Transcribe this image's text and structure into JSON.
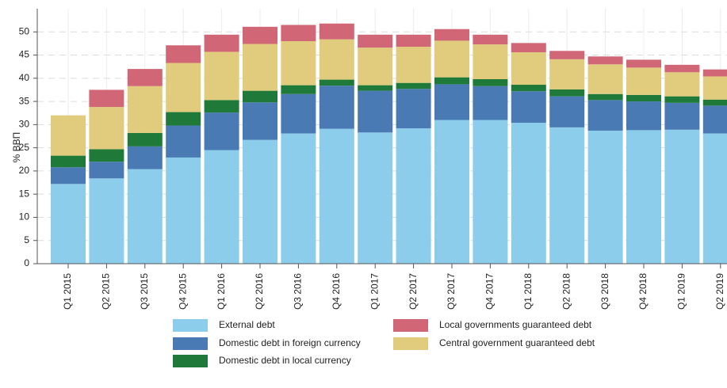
{
  "chart_data": {
    "type": "stacked_bar",
    "y_label": "% ВВП",
    "categories": [
      "Q1 2015",
      "Q2 2015",
      "Q3 2015",
      "Q4 2015",
      "Q1 2016",
      "Q2 2016",
      "Q3 2016",
      "Q4 2016",
      "Q1 2017",
      "Q2 2017",
      "Q3 2017",
      "Q4 2017",
      "Q1 2018",
      "Q2 2018",
      "Q3 2018",
      "Q4 2018",
      "Q1 2019",
      "Q2 2019"
    ],
    "series": [
      {
        "name": "External debt",
        "color": "#8ccdec",
        "values": [
          17.2,
          18.4,
          20.4,
          22.9,
          24.5,
          26.7,
          28.1,
          29.1,
          28.3,
          29.2,
          31.0,
          31.0,
          30.4,
          29.4,
          28.7,
          28.8,
          28.9,
          28.1
        ]
      },
      {
        "name": "Domestic debt in foreign currency",
        "color": "#4a7ab3",
        "values": [
          3.6,
          3.6,
          4.9,
          6.9,
          8.1,
          8.1,
          8.5,
          9.3,
          9.0,
          8.5,
          7.7,
          7.3,
          6.8,
          6.7,
          6.6,
          6.2,
          5.8,
          6.0
        ]
      },
      {
        "name": "Domestic debt in local currency",
        "color": "#1f7a3a",
        "values": [
          2.5,
          2.7,
          2.9,
          2.9,
          2.7,
          2.5,
          1.9,
          1.3,
          1.2,
          1.3,
          1.5,
          1.5,
          1.4,
          1.5,
          1.3,
          1.4,
          1.4,
          1.3
        ]
      },
      {
        "name": "Central government guaranteed debt",
        "color": "#e0cc7c",
        "values": [
          8.7,
          9.1,
          10.1,
          10.6,
          10.4,
          10.1,
          9.5,
          8.7,
          8.1,
          7.8,
          7.9,
          7.5,
          7.0,
          6.5,
          6.4,
          5.9,
          5.2,
          5.0
        ]
      },
      {
        "name": "Local governments guaranteed debt",
        "color": "#d06676",
        "values": [
          0,
          3.7,
          3.7,
          3.8,
          3.7,
          3.7,
          3.5,
          3.4,
          2.8,
          2.6,
          2.5,
          2.1,
          2.0,
          1.8,
          1.7,
          1.7,
          1.6,
          1.5
        ]
      }
    ],
    "ylim": [
      0,
      55
    ],
    "yticks": [
      0,
      5,
      10,
      15,
      20,
      25,
      30,
      35,
      40,
      45,
      50
    ],
    "grid": true
  }
}
